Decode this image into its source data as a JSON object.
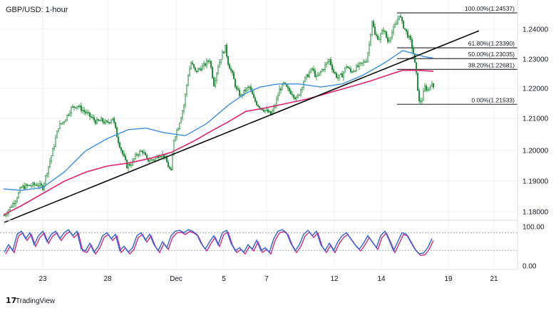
{
  "chart_data": {
    "type": "candlestick",
    "title": "GBP/USD: 1-hour",
    "x_ticks": [
      "23",
      "28",
      "Dec",
      "5",
      "7",
      "12",
      "14",
      "19",
      "21"
    ],
    "y_ticks": [
      "1.24000",
      "1.23000",
      "1.22000",
      "1.21000",
      "1.20000",
      "1.19000",
      "1.18000"
    ],
    "ylim": [
      1.1745,
      1.2485
    ],
    "fibonacci": [
      {
        "label": "100.00%(1.24537)",
        "value": 1.24537
      },
      {
        "label": "61.80%(1.23390)",
        "value": 1.2339
      },
      {
        "label": "50.00%(1.23035)",
        "value": 1.23035
      },
      {
        "label": "38.20%(1.22681)",
        "value": 1.22681
      },
      {
        "label": "0.00%(1.21533)",
        "value": 1.21533
      }
    ],
    "close_path": [
      [
        0,
        1.177
      ],
      [
        10,
        1.18
      ],
      [
        22,
        1.184
      ],
      [
        30,
        1.188
      ],
      [
        40,
        1.1885
      ],
      [
        52,
        1.189
      ],
      [
        60,
        1.188
      ],
      [
        68,
        1.195
      ],
      [
        75,
        1.201
      ],
      [
        82,
        1.208
      ],
      [
        90,
        1.21
      ],
      [
        100,
        1.214
      ],
      [
        108,
        1.215
      ],
      [
        118,
        1.213
      ],
      [
        128,
        1.211
      ],
      [
        135,
        1.2095
      ],
      [
        142,
        1.21
      ],
      [
        150,
        1.209
      ],
      [
        158,
        1.211
      ],
      [
        165,
        1.204
      ],
      [
        172,
        1.199
      ],
      [
        178,
        1.195
      ],
      [
        185,
        1.196
      ],
      [
        192,
        1.199
      ],
      [
        200,
        1.2
      ],
      [
        206,
        1.197
      ],
      [
        212,
        1.197
      ],
      [
        218,
        1.1975
      ],
      [
        224,
        1.199
      ],
      [
        230,
        1.1985
      ],
      [
        236,
        1.195
      ],
      [
        240,
        1.193
      ],
      [
        244,
        1.204
      ],
      [
        250,
        1.208
      ],
      [
        258,
        1.215
      ],
      [
        264,
        1.225
      ],
      [
        268,
        1.229
      ],
      [
        274,
        1.226
      ],
      [
        280,
        1.227
      ],
      [
        286,
        1.228
      ],
      [
        294,
        1.23
      ],
      [
        300,
        1.222
      ],
      [
        306,
        1.228
      ],
      [
        312,
        1.232
      ],
      [
        316,
        1.234
      ],
      [
        320,
        1.229
      ],
      [
        326,
        1.225
      ],
      [
        332,
        1.22
      ],
      [
        338,
        1.218
      ],
      [
        344,
        1.22
      ],
      [
        350,
        1.221
      ],
      [
        356,
        1.217
      ],
      [
        362,
        1.215
      ],
      [
        368,
        1.214
      ],
      [
        374,
        1.213
      ],
      [
        380,
        1.212
      ],
      [
        386,
        1.215
      ],
      [
        392,
        1.22
      ],
      [
        398,
        1.222
      ],
      [
        404,
        1.22
      ],
      [
        410,
        1.219
      ],
      [
        416,
        1.217
      ],
      [
        420,
        1.219
      ],
      [
        426,
        1.223
      ],
      [
        432,
        1.225
      ],
      [
        438,
        1.227
      ],
      [
        444,
        1.224
      ],
      [
        450,
        1.226
      ],
      [
        456,
        1.228
      ],
      [
        462,
        1.23
      ],
      [
        468,
        1.226
      ],
      [
        474,
        1.224
      ],
      [
        480,
        1.225
      ],
      [
        486,
        1.228
      ],
      [
        492,
        1.226
      ],
      [
        498,
        1.227
      ],
      [
        504,
        1.228
      ],
      [
        510,
        1.229
      ],
      [
        514,
        1.23
      ],
      [
        518,
        1.235
      ],
      [
        522,
        1.243
      ],
      [
        526,
        1.238
      ],
      [
        532,
        1.237
      ],
      [
        538,
        1.24
      ],
      [
        544,
        1.236
      ],
      [
        550,
        1.239
      ],
      [
        556,
        1.242
      ],
      [
        560,
        1.245
      ],
      [
        564,
        1.242
      ],
      [
        568,
        1.24
      ],
      [
        572,
        1.238
      ],
      [
        576,
        1.236
      ],
      [
        580,
        1.232
      ],
      [
        584,
        1.225
      ],
      [
        588,
        1.216
      ],
      [
        592,
        1.217
      ],
      [
        596,
        1.221
      ],
      [
        600,
        1.22
      ],
      [
        604,
        1.222
      ],
      [
        608,
        1.221
      ]
    ],
    "ma_blue": [
      [
        5,
        1.1875
      ],
      [
        30,
        1.187
      ],
      [
        60,
        1.188
      ],
      [
        90,
        1.193
      ],
      [
        120,
        1.2
      ],
      [
        150,
        1.204
      ],
      [
        180,
        1.207
      ],
      [
        205,
        1.2075
      ],
      [
        230,
        1.206
      ],
      [
        260,
        1.205
      ],
      [
        290,
        1.209
      ],
      [
        320,
        1.215
      ],
      [
        345,
        1.219
      ],
      [
        365,
        1.221
      ],
      [
        390,
        1.222
      ],
      [
        420,
        1.222
      ],
      [
        450,
        1.221
      ],
      [
        480,
        1.222
      ],
      [
        510,
        1.225
      ],
      [
        540,
        1.229
      ],
      [
        565,
        1.233
      ],
      [
        580,
        1.232
      ],
      [
        595,
        1.231
      ],
      [
        608,
        1.2305
      ]
    ],
    "ma_red": [
      [
        5,
        1.179
      ],
      [
        30,
        1.182
      ],
      [
        60,
        1.186
      ],
      [
        90,
        1.19
      ],
      [
        120,
        1.193
      ],
      [
        150,
        1.195
      ],
      [
        180,
        1.196
      ],
      [
        210,
        1.1975
      ],
      [
        240,
        1.1995
      ],
      [
        270,
        1.203
      ],
      [
        300,
        1.207
      ],
      [
        320,
        1.2095
      ],
      [
        345,
        1.213
      ],
      [
        370,
        1.214
      ],
      [
        400,
        1.2155
      ],
      [
        430,
        1.217
      ],
      [
        460,
        1.219
      ],
      [
        490,
        1.221
      ],
      [
        520,
        1.223
      ],
      [
        545,
        1.225
      ],
      [
        565,
        1.2265
      ],
      [
        585,
        1.2265
      ],
      [
        608,
        1.2262
      ]
    ],
    "trendline": [
      [
        6,
        1.1765
      ],
      [
        672,
        1.2395
      ]
    ],
    "oscillator": {
      "y_ticks": [
        "100.00",
        "0.00"
      ],
      "levels": [
        80,
        20
      ],
      "series_a": [
        [
          6,
          15
        ],
        [
          12,
          40
        ],
        [
          18,
          20
        ],
        [
          24,
          75
        ],
        [
          30,
          85
        ],
        [
          36,
          60
        ],
        [
          42,
          80
        ],
        [
          48,
          40
        ],
        [
          54,
          70
        ],
        [
          60,
          85
        ],
        [
          66,
          50
        ],
        [
          72,
          75
        ],
        [
          78,
          85
        ],
        [
          84,
          60
        ],
        [
          90,
          80
        ],
        [
          96,
          90
        ],
        [
          102,
          70
        ],
        [
          108,
          85
        ],
        [
          114,
          25
        ],
        [
          120,
          20
        ],
        [
          126,
          45
        ],
        [
          132,
          15
        ],
        [
          138,
          35
        ],
        [
          144,
          70
        ],
        [
          150,
          80
        ],
        [
          156,
          60
        ],
        [
          162,
          75
        ],
        [
          168,
          20
        ],
        [
          174,
          35
        ],
        [
          180,
          15
        ],
        [
          186,
          30
        ],
        [
          192,
          70
        ],
        [
          198,
          80
        ],
        [
          204,
          55
        ],
        [
          210,
          75
        ],
        [
          216,
          40
        ],
        [
          222,
          20
        ],
        [
          228,
          50
        ],
        [
          234,
          30
        ],
        [
          240,
          70
        ],
        [
          246,
          85
        ],
        [
          252,
          88
        ],
        [
          258,
          80
        ],
        [
          264,
          90
        ],
        [
          270,
          85
        ],
        [
          276,
          75
        ],
        [
          282,
          45
        ],
        [
          288,
          25
        ],
        [
          294,
          50
        ],
        [
          300,
          70
        ],
        [
          306,
          40
        ],
        [
          312,
          80
        ],
        [
          318,
          88
        ],
        [
          324,
          45
        ],
        [
          330,
          20
        ],
        [
          336,
          30
        ],
        [
          342,
          15
        ],
        [
          348,
          40
        ],
        [
          354,
          25
        ],
        [
          360,
          55
        ],
        [
          366,
          20
        ],
        [
          372,
          30
        ],
        [
          378,
          15
        ],
        [
          384,
          60
        ],
        [
          390,
          85
        ],
        [
          396,
          90
        ],
        [
          402,
          80
        ],
        [
          408,
          45
        ],
        [
          414,
          20
        ],
        [
          420,
          40
        ],
        [
          426,
          75
        ],
        [
          432,
          88
        ],
        [
          438,
          70
        ],
        [
          444,
          85
        ],
        [
          450,
          40
        ],
        [
          456,
          20
        ],
        [
          462,
          45
        ],
        [
          468,
          20
        ],
        [
          474,
          50
        ],
        [
          480,
          70
        ],
        [
          486,
          80
        ],
        [
          492,
          60
        ],
        [
          498,
          40
        ],
        [
          504,
          25
        ],
        [
          510,
          45
        ],
        [
          516,
          70
        ],
        [
          522,
          50
        ],
        [
          528,
          30
        ],
        [
          534,
          70
        ],
        [
          540,
          85
        ],
        [
          546,
          55
        ],
        [
          552,
          20
        ],
        [
          558,
          50
        ],
        [
          564,
          80
        ],
        [
          570,
          75
        ],
        [
          576,
          50
        ],
        [
          582,
          25
        ],
        [
          588,
          10
        ],
        [
          594,
          12
        ],
        [
          600,
          30
        ],
        [
          606,
          60
        ]
      ]
    },
    "brand": "TradingView"
  },
  "colors": {
    "candle": "#1f8a35",
    "ma_blue": "#3d8ee0",
    "ma_red": "#e0236f",
    "trendline": "#000000",
    "osc_a": "#2f63d6",
    "osc_b": "#cc2a8a"
  }
}
